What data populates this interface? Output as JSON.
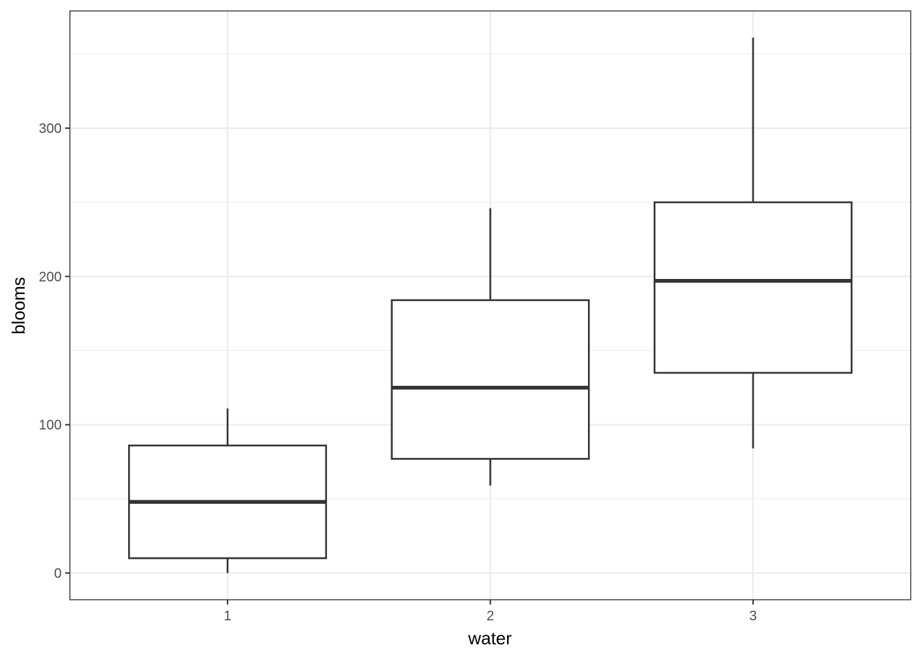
{
  "chart_data": {
    "type": "boxplot",
    "title": "",
    "xlabel": "water",
    "ylabel": "blooms",
    "categories": [
      "1",
      "2",
      "3"
    ],
    "boxes": [
      {
        "category": "1",
        "lower_whisker": 0,
        "q1": 10,
        "median": 48,
        "q3": 86,
        "upper_whisker": 111
      },
      {
        "category": "2",
        "lower_whisker": 59,
        "q1": 77,
        "median": 125,
        "q3": 184,
        "upper_whisker": 246
      },
      {
        "category": "3",
        "lower_whisker": 84,
        "q1": 135,
        "median": 197,
        "q3": 250,
        "upper_whisker": 361
      }
    ],
    "ylim": [
      -18,
      379
    ],
    "y_ticks": [
      0,
      100,
      200,
      300
    ],
    "y_tick_labels": [
      "0",
      "100",
      "200",
      "300"
    ],
    "y_minor_ticks": [
      50,
      150,
      250,
      350
    ],
    "grid": true,
    "legend": "none"
  }
}
